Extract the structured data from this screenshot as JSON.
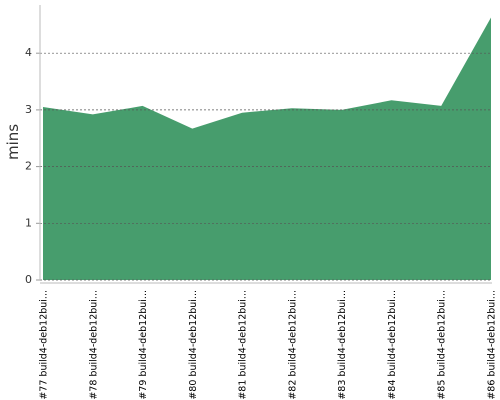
{
  "chart_data": {
    "type": "area",
    "y_label": "mins",
    "categories": [
      "#77 build4-deb12bui...",
      "#78 build4-deb12bui...",
      "#79 build4-deb12bui...",
      "#80 build4-deb12bui...",
      "#81 build4-deb12bui...",
      "#82 build4-deb12bui...",
      "#83 build4-deb12bui...",
      "#84 build4-deb12bui...",
      "#85 build4-deb12bui...",
      "#86 build4-deb12bui..."
    ],
    "values": [
      3.05,
      2.92,
      3.07,
      2.67,
      2.95,
      3.03,
      3.0,
      3.17,
      3.07,
      4.63
    ],
    "color": "#479d6d",
    "ylim": [
      0,
      4.85
    ],
    "yticks": [
      0,
      1,
      2,
      3,
      4
    ],
    "grid": true
  }
}
